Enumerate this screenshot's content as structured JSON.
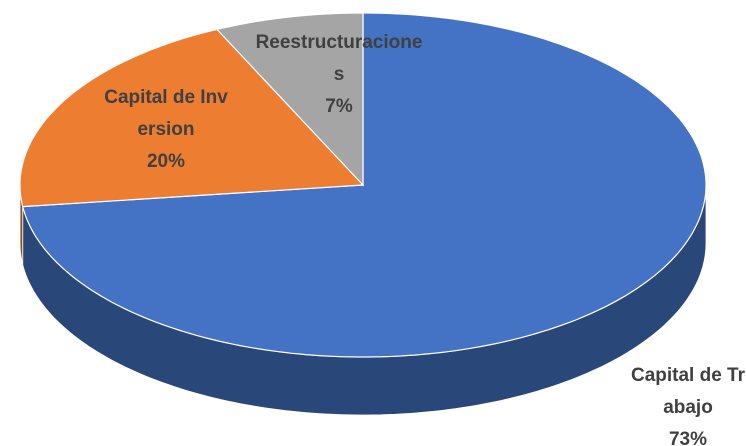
{
  "chart_data": {
    "type": "pie",
    "categories": [
      "Capital de Trabajo",
      "Capital de Inversion",
      "Reestructuraciones"
    ],
    "values": [
      73,
      20,
      7
    ],
    "value_labels": [
      "73%",
      "20%",
      "7%"
    ],
    "colors": [
      "#4472c4",
      "#ed7d31",
      "#a5a5a5"
    ]
  }
}
